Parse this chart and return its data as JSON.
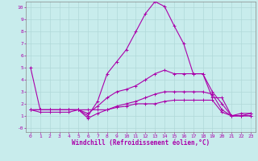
{
  "xlabel": "Windchill (Refroidissement éolien,°C)",
  "background_color": "#c8ecec",
  "grid_color": "#b0d8d8",
  "line_color": "#aa00aa",
  "xlim": [
    -0.5,
    23.5
  ],
  "ylim": [
    -0.35,
    10.5
  ],
  "xticks": [
    0,
    1,
    2,
    3,
    4,
    5,
    6,
    7,
    8,
    9,
    10,
    11,
    12,
    13,
    14,
    15,
    16,
    17,
    18,
    19,
    20,
    21,
    22,
    23
  ],
  "yticks": [
    0,
    1,
    2,
    3,
    4,
    5,
    6,
    7,
    8,
    9,
    10
  ],
  "ytick_labels": [
    "-0",
    "1",
    "2",
    "3",
    "4",
    "5",
    "6",
    "7",
    "8",
    "9",
    "10"
  ],
  "line1_x": [
    0,
    1,
    2,
    3,
    4,
    5,
    6,
    7,
    8,
    9,
    10,
    11,
    12,
    13,
    14,
    15,
    16,
    17,
    18,
    19,
    20,
    21,
    22,
    23
  ],
  "line1_y": [
    5.0,
    1.5,
    1.5,
    1.5,
    1.5,
    1.5,
    1.0,
    2.2,
    4.5,
    5.5,
    6.5,
    8.0,
    9.5,
    10.5,
    10.1,
    8.5,
    7.0,
    4.5,
    4.5,
    3.0,
    2.0,
    1.0,
    1.2,
    1.2
  ],
  "line2_x": [
    0,
    1,
    2,
    3,
    4,
    5,
    6,
    7,
    8,
    9,
    10,
    11,
    12,
    13,
    14,
    15,
    16,
    17,
    18,
    19,
    20,
    21,
    22,
    23
  ],
  "line2_y": [
    1.5,
    1.5,
    1.5,
    1.5,
    1.5,
    1.5,
    1.2,
    1.8,
    2.5,
    3.0,
    3.2,
    3.5,
    4.0,
    4.5,
    4.8,
    4.5,
    4.5,
    4.5,
    4.5,
    2.5,
    2.5,
    1.0,
    1.0,
    1.2
  ],
  "line3_x": [
    0,
    1,
    2,
    3,
    4,
    5,
    6,
    7,
    8,
    9,
    10,
    11,
    12,
    13,
    14,
    15,
    16,
    17,
    18,
    19,
    20,
    21,
    22,
    23
  ],
  "line3_y": [
    1.5,
    1.5,
    1.5,
    1.5,
    1.5,
    1.5,
    0.8,
    1.2,
    1.5,
    1.8,
    2.0,
    2.2,
    2.5,
    2.8,
    3.0,
    3.0,
    3.0,
    3.0,
    3.0,
    2.8,
    1.5,
    1.0,
    1.0,
    1.0
  ],
  "line4_x": [
    0,
    1,
    2,
    3,
    4,
    5,
    6,
    7,
    8,
    9,
    10,
    11,
    12,
    13,
    14,
    15,
    16,
    17,
    18,
    19,
    20,
    21,
    22,
    23
  ],
  "line4_y": [
    1.5,
    1.3,
    1.3,
    1.3,
    1.3,
    1.5,
    1.5,
    1.5,
    1.5,
    1.7,
    1.8,
    2.0,
    2.0,
    2.0,
    2.2,
    2.3,
    2.3,
    2.3,
    2.3,
    2.3,
    1.3,
    1.0,
    1.0,
    1.0
  ],
  "marker": "+",
  "marker_size": 3,
  "line_width": 0.8,
  "tick_fontsize": 4.5,
  "xlabel_fontsize": 5.5
}
